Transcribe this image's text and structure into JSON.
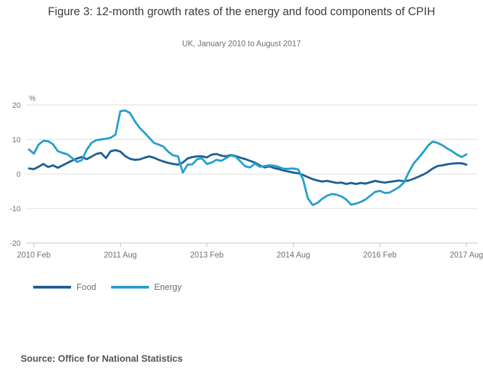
{
  "header": {
    "title": "Figure 3: 12-month growth rates of the energy and food components of CPIH",
    "subtitle": "UK, January 2010 to August 2017"
  },
  "source_note": "Source: Office for National Statistics",
  "colors": {
    "food_line": "#206095",
    "energy_line": "#27a0cc",
    "gridline": "#dddddd",
    "axis_line": "#b7c8d4",
    "tick_text": "#707071",
    "title_text": "#3c3c3b",
    "source_text": "#545454"
  },
  "chart_data": {
    "type": "line",
    "title": "Figure 3: 12-month growth rates of the energy and food components of CPIH",
    "subtitle": "UK, January 2010 to August 2017",
    "unit_label": "%",
    "x_start": "2010 Jan",
    "x_end": "2017 Aug",
    "frequency": "monthly",
    "ylim": [
      -20,
      20
    ],
    "y_ticks": [
      20,
      10,
      0,
      -10,
      -20
    ],
    "x_tick_labels": [
      "2010 Feb",
      "2011 Aug",
      "2013 Feb",
      "2014 Aug",
      "2016 Feb",
      "2017 Aug"
    ],
    "x_tick_month_indices": [
      1,
      19,
      37,
      55,
      73,
      91
    ],
    "legend_position": "bottom-left",
    "grid": "horizontal",
    "series": [
      {
        "name": "Food",
        "color": "#206095",
        "values": [
          1.6,
          1.4,
          2.1,
          2.9,
          2.0,
          2.5,
          1.8,
          2.5,
          3.2,
          3.9,
          4.5,
          4.9,
          4.3,
          5.0,
          5.8,
          6.1,
          4.6,
          6.6,
          6.9,
          6.5,
          5.2,
          4.4,
          4.1,
          4.2,
          4.7,
          5.1,
          4.7,
          4.1,
          3.6,
          3.2,
          2.9,
          2.7,
          3.3,
          4.5,
          4.9,
          5.1,
          5.1,
          4.8,
          5.6,
          5.8,
          5.3,
          5.1,
          5.5,
          5.2,
          4.7,
          4.3,
          3.8,
          3.3,
          2.5,
          1.9,
          2.2,
          1.7,
          1.4,
          1.0,
          0.7,
          0.4,
          0.2,
          -0.3,
          -0.9,
          -1.5,
          -1.9,
          -2.2,
          -2.0,
          -2.3,
          -2.6,
          -2.5,
          -2.9,
          -2.6,
          -2.9,
          -2.6,
          -2.8,
          -2.4,
          -2.0,
          -2.3,
          -2.5,
          -2.3,
          -2.1,
          -1.9,
          -2.1,
          -1.9,
          -1.4,
          -0.8,
          -0.2,
          0.6,
          1.6,
          2.3,
          2.5,
          2.8,
          3.0,
          3.1,
          3.1,
          2.7
        ]
      },
      {
        "name": "Energy",
        "color": "#27a0cc",
        "values": [
          7.1,
          5.9,
          8.5,
          9.6,
          9.5,
          8.6,
          6.6,
          6.1,
          5.7,
          4.6,
          3.5,
          4.0,
          7.0,
          9.0,
          9.8,
          10.0,
          10.2,
          10.5,
          11.4,
          18.2,
          18.4,
          17.7,
          15.3,
          13.4,
          12.0,
          10.5,
          9.0,
          8.5,
          7.9,
          6.4,
          5.4,
          5.1,
          0.4,
          2.7,
          2.8,
          4.3,
          4.5,
          2.9,
          3.3,
          4.1,
          3.8,
          4.6,
          5.4,
          5.0,
          3.6,
          2.2,
          1.9,
          3.0,
          2.1,
          2.3,
          2.5,
          2.4,
          2.0,
          1.5,
          1.5,
          1.6,
          1.3,
          -1.5,
          -7.0,
          -9.0,
          -8.4,
          -7.2,
          -6.3,
          -5.8,
          -6.0,
          -6.5,
          -7.4,
          -8.9,
          -8.6,
          -8.1,
          -7.4,
          -6.3,
          -5.2,
          -4.9,
          -5.5,
          -5.4,
          -4.6,
          -3.8,
          -2.5,
          0.5,
          3.0,
          4.6,
          6.3,
          8.2,
          9.4,
          9.0,
          8.3,
          7.4,
          6.6,
          5.6,
          4.9,
          5.7
        ]
      }
    ]
  }
}
